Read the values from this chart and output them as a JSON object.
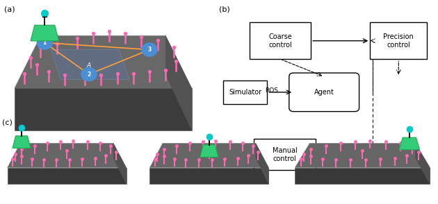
{
  "panel_a_label": "(a)",
  "panel_b_label": "(b)",
  "panel_c_label": "(c)",
  "bg_color": "#ffffff",
  "platform_top_color": "#686868",
  "platform_front_color": "#3c3c3c",
  "platform_right_color": "#525252",
  "highlight_color": "#607090",
  "pink_color": "#ff69b4",
  "green_gripper_color": "#33cc77",
  "green_gripper_edge": "#22aa55",
  "orange_line_color": "#ffa040",
  "blue_circle_color": "#4a8fd4",
  "cyan_head_color": "#00cccc",
  "box_edge_color": "#000000",
  "box_face_color": "#ffffff",
  "arrow_color": "#000000"
}
